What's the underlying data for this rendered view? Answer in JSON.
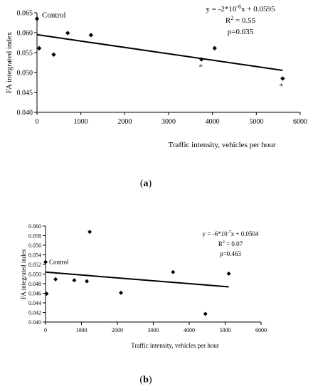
{
  "chart_data": [
    {
      "type": "scatter",
      "panel_label": "(a)",
      "ylabel": "FA integrated index",
      "xlabel": "Traffic intensity, vehicles per hour",
      "xlim": [
        0,
        6000
      ],
      "ylim": [
        0.04,
        0.065
      ],
      "x_ticks": [
        "0",
        "1000",
        "2000",
        "3000",
        "4000",
        "5000",
        "6000"
      ],
      "y_ticks": [
        "0.040",
        "0.045",
        "0.050",
        "0.055",
        "0.060",
        "0.065"
      ],
      "points": [
        {
          "x": 0,
          "y": 0.0635
        },
        {
          "x": 50,
          "y": 0.0561
        },
        {
          "x": 380,
          "y": 0.0545
        },
        {
          "x": 700,
          "y": 0.0599
        },
        {
          "x": 1230,
          "y": 0.0594
        },
        {
          "x": 3750,
          "y": 0.0533
        },
        {
          "x": 4050,
          "y": 0.0561
        },
        {
          "x": 5600,
          "y": 0.0485
        }
      ],
      "trend": {
        "slope": -1.6e-06,
        "intercept": 0.0595,
        "x_from": 0,
        "x_to": 5600
      },
      "annotations": [
        {
          "text": "Control",
          "x": 0,
          "y": 0.0635
        },
        {
          "text": "*",
          "x": 3750,
          "y": 0.0533
        },
        {
          "text": "*",
          "x": 5600,
          "y": 0.0485
        }
      ],
      "equation": {
        "pre": "y = -2*10",
        "sup": "-6",
        "post": "x + 0.0595"
      },
      "r2": {
        "pre": "R",
        "sup": "2",
        "post": " = 0.55"
      },
      "pvalue": "p=0.035"
    },
    {
      "type": "scatter",
      "panel_label": "(b)",
      "ylabel": "FA integrated index",
      "xlabel": "Traffic intensity, vehicles per hour",
      "xlim": [
        0,
        6000
      ],
      "ylim": [
        0.04,
        0.06
      ],
      "x_ticks": [
        "0",
        "1000",
        "2000",
        "3000",
        "4000",
        "5000",
        "6000"
      ],
      "y_ticks": [
        "0.040",
        "0.042",
        "0.044",
        "0.046",
        "0.048",
        "0.050",
        "0.052",
        "0.054",
        "0.056",
        "0.058",
        "0.060"
      ],
      "points": [
        {
          "x": 0,
          "y": 0.0525
        },
        {
          "x": 30,
          "y": 0.0459
        },
        {
          "x": 280,
          "y": 0.0489
        },
        {
          "x": 800,
          "y": 0.0487
        },
        {
          "x": 1150,
          "y": 0.0485
        },
        {
          "x": 1230,
          "y": 0.0588
        },
        {
          "x": 2100,
          "y": 0.0461
        },
        {
          "x": 3550,
          "y": 0.0504
        },
        {
          "x": 4450,
          "y": 0.0417
        },
        {
          "x": 5100,
          "y": 0.0501
        }
      ],
      "trend": {
        "slope": -6e-07,
        "intercept": 0.0504,
        "x_from": 0,
        "x_to": 5100
      },
      "annotations": [
        {
          "text": "Control",
          "x": 0,
          "y": 0.0525
        }
      ],
      "equation": {
        "pre": "y = -6*10",
        "sup": "-7",
        "post": "x + 0.0504"
      },
      "r2": {
        "pre": "R",
        "sup": "2",
        "post": " = 0.07"
      },
      "pvalue": "p=0.463"
    }
  ]
}
